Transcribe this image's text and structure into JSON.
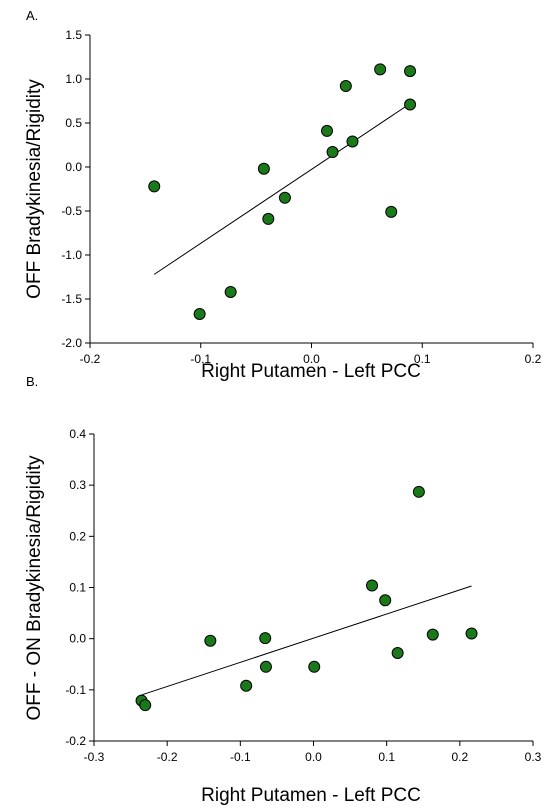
{
  "chart_data": [
    {
      "type": "scatter",
      "panel_label": "A.",
      "xlabel": "Right Putamen - Left PCC",
      "ylabel": "OFF Bradykinesia/Rigidity",
      "xlim": [
        -0.2,
        0.2
      ],
      "ylim": [
        -2.0,
        1.5
      ],
      "xticks": [
        -0.2,
        -0.1,
        0.0,
        0.1,
        0.2
      ],
      "yticks": [
        -2.0,
        -1.5,
        -1.0,
        -0.5,
        0.0,
        0.5,
        1.0,
        1.5
      ],
      "xtick_labels": [
        "-0.2",
        "-0.1",
        "0.0",
        "0.1",
        "0.2"
      ],
      "ytick_labels": [
        "-2.0",
        "-1.5",
        "-1.0",
        "-0.5",
        "0.0",
        "0.5",
        "1.0",
        "1.5"
      ],
      "grid": false,
      "marker_color": "#1a7a1a",
      "points": [
        {
          "x": -0.142,
          "y": -0.22
        },
        {
          "x": -0.101,
          "y": -1.67
        },
        {
          "x": -0.073,
          "y": -1.42
        },
        {
          "x": -0.043,
          "y": -0.02
        },
        {
          "x": -0.039,
          "y": -0.59
        },
        {
          "x": -0.024,
          "y": -0.35
        },
        {
          "x": 0.014,
          "y": 0.41
        },
        {
          "x": 0.019,
          "y": 0.17
        },
        {
          "x": 0.031,
          "y": 0.92
        },
        {
          "x": 0.037,
          "y": 0.29
        },
        {
          "x": 0.062,
          "y": 1.11
        },
        {
          "x": 0.072,
          "y": -0.51
        },
        {
          "x": 0.089,
          "y": 1.09
        },
        {
          "x": 0.089,
          "y": 0.71
        }
      ],
      "fit_line": {
        "x": [
          -0.142,
          0.089
        ],
        "y": [
          -1.22,
          0.72
        ]
      }
    },
    {
      "type": "scatter",
      "panel_label": "B.",
      "xlabel": "Right Putamen - Left PCC",
      "ylabel": "OFF - ON Bradykinesia/Rigidity",
      "xlim": [
        -0.3,
        0.3
      ],
      "ylim": [
        -0.2,
        0.4
      ],
      "xticks": [
        -0.3,
        -0.2,
        -0.1,
        0.0,
        0.1,
        0.2,
        0.3
      ],
      "yticks": [
        -0.2,
        -0.1,
        0.0,
        0.1,
        0.2,
        0.3,
        0.4
      ],
      "xtick_labels": [
        "-0.3",
        "-0.2",
        "-0.1",
        "0.0",
        "0.1",
        "0.2",
        "0.3"
      ],
      "ytick_labels": [
        "-0.2",
        "-0.1",
        "0.0",
        "0.1",
        "0.2",
        "0.3",
        "0.4"
      ],
      "grid": false,
      "marker_color": "#1a7a1a",
      "points": [
        {
          "x": -0.235,
          "y": -0.121
        },
        {
          "x": -0.23,
          "y": -0.13
        },
        {
          "x": -0.141,
          "y": -0.004
        },
        {
          "x": -0.092,
          "y": -0.092
        },
        {
          "x": -0.066,
          "y": 0.001
        },
        {
          "x": -0.065,
          "y": -0.055
        },
        {
          "x": 0.001,
          "y": -0.055
        },
        {
          "x": 0.08,
          "y": 0.104
        },
        {
          "x": 0.098,
          "y": 0.075
        },
        {
          "x": 0.115,
          "y": -0.028
        },
        {
          "x": 0.144,
          "y": 0.287
        },
        {
          "x": 0.163,
          "y": 0.008
        },
        {
          "x": 0.216,
          "y": 0.01
        }
      ],
      "fit_line": {
        "x": [
          -0.235,
          0.216
        ],
        "y": [
          -0.11,
          0.103
        ]
      }
    }
  ]
}
